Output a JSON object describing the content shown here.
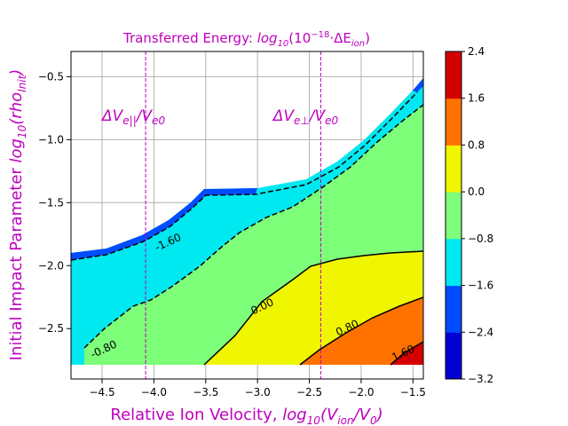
{
  "chart_data": {
    "type": "contourf",
    "title": "Transferred Energy: log₁₀(10⁻¹⁸ · ΔE_ion)",
    "title_parts": {
      "prefix": "Transferred Energy: ",
      "func": "log",
      "func_sub": "10",
      "open": "(10",
      "exp": "−18",
      "mid": "·ΔE",
      "sub": "ion",
      "close": ")"
    },
    "xlabel": "Relative Ion Velocity,  log₁₀(V_ion/V₀)",
    "xlabel_parts": {
      "prefix": "Relative Ion Velocity,  ",
      "func": "log",
      "func_sub": "10",
      "open": "(V",
      "sub1": "ion",
      "mid": "/V",
      "sub2": "0",
      "close": ")"
    },
    "ylabel": "Initial Impact Parameter log₁₀(rho_Init)",
    "ylabel_parts": {
      "prefix": "Initial Impact Parameter ",
      "func": "log",
      "func_sub": "10",
      "open": "(rho",
      "sub": "Init",
      "close": ")"
    },
    "xlim": [
      -4.8,
      -1.4
    ],
    "ylim": [
      -2.9,
      -0.3
    ],
    "xticks": [
      -4.5,
      -4.0,
      -3.5,
      -3.0,
      -2.5,
      -2.0,
      -1.5
    ],
    "xtick_labels": [
      "−4.5",
      "−4.0",
      "−3.5",
      "−3.0",
      "−2.5",
      "−2.0",
      "−1.5"
    ],
    "yticks": [
      -2.5,
      -2.0,
      -1.5,
      -1.0,
      -0.5
    ],
    "ytick_labels": [
      "−2.5",
      "−2.0",
      "−1.5",
      "−1.0",
      "−0.5"
    ],
    "grid": true,
    "colorbar": {
      "levels": [
        -3.2,
        -2.4,
        -1.6,
        -0.8,
        0.0,
        0.8,
        1.6,
        2.4
      ],
      "labels": [
        "−3.2",
        "−2.4",
        "−1.6",
        "−0.8",
        "0.0",
        "0.8",
        "1.6",
        "2.4"
      ],
      "colors": [
        "#0000d4",
        "#004cff",
        "#00e8f0",
        "#7dff7a",
        "#f0f500",
        "#ff7200",
        "#d40000"
      ]
    },
    "contour_labels": [
      {
        "text": "-1.60",
        "x": -3.85,
        "y": -1.84
      },
      {
        "text": "0.00",
        "x": -2.94,
        "y": -2.35
      },
      {
        "text": "0.80",
        "x": -2.12,
        "y": -2.52
      },
      {
        "text": "1.60",
        "x": -1.58,
        "y": -2.72
      },
      {
        "text": "-0.80",
        "x": -4.47,
        "y": -2.69
      }
    ],
    "vlines": [
      {
        "x": -4.08,
        "label_main": "ΔV",
        "label_sub": "e||",
        "label_tail": "/V",
        "label_tail_sub": "e0",
        "label_x": -4.5,
        "label_y": -0.8
      },
      {
        "x": -2.39,
        "label_main": "ΔV",
        "label_sub": "e⊥",
        "label_tail": "/V",
        "label_tail_sub": "e0",
        "label_x": -2.85,
        "label_y": -0.8
      }
    ],
    "colors": {
      "accent": "#bf00bf",
      "grid": "#b0b0b0"
    }
  }
}
